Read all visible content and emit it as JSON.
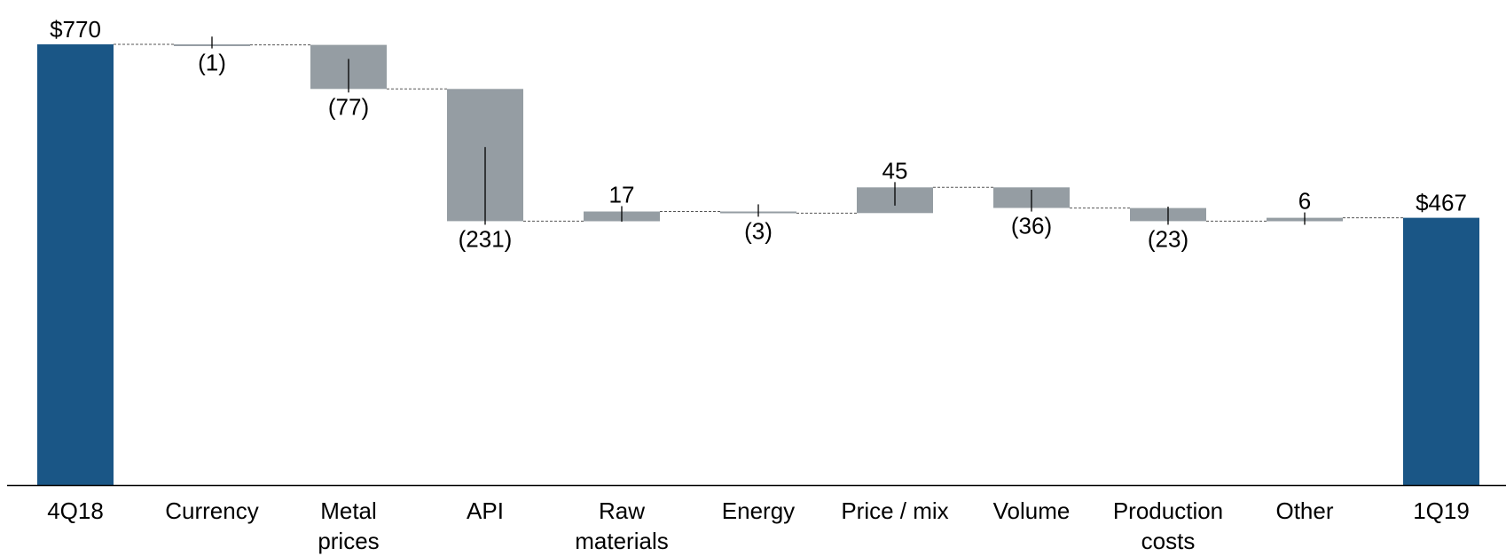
{
  "chart_data": {
    "type": "waterfall",
    "title": "",
    "xlabel": "",
    "ylabel": "",
    "ylim": [
      0,
      815
    ],
    "grid": false,
    "legend": "none",
    "colors": {
      "total": "#1a5686",
      "change": "#959da3",
      "connector": "#555555",
      "axis": "#000000"
    },
    "bars": [
      {
        "kind": "total",
        "label_lines": [
          "4Q18"
        ],
        "value": 770,
        "data_label": "$770"
      },
      {
        "kind": "change",
        "label_lines": [
          "Currency"
        ],
        "value": -1,
        "data_label": "(1)"
      },
      {
        "kind": "change",
        "label_lines": [
          "Metal",
          "prices"
        ],
        "value": -77,
        "data_label": "(77)"
      },
      {
        "kind": "change",
        "label_lines": [
          "API"
        ],
        "value": -231,
        "data_label": "(231)"
      },
      {
        "kind": "change",
        "label_lines": [
          "Raw",
          "materials"
        ],
        "value": 17,
        "data_label": "17"
      },
      {
        "kind": "change",
        "label_lines": [
          "Energy"
        ],
        "value": -3,
        "data_label": "(3)"
      },
      {
        "kind": "change",
        "label_lines": [
          "Price / mix"
        ],
        "value": 45,
        "data_label": "45"
      },
      {
        "kind": "change",
        "label_lines": [
          "Volume"
        ],
        "value": -36,
        "data_label": "(36)"
      },
      {
        "kind": "change",
        "label_lines": [
          "Production",
          "costs"
        ],
        "value": -23,
        "data_label": "(23)"
      },
      {
        "kind": "change",
        "label_lines": [
          "Other"
        ],
        "value": 6,
        "data_label": "6"
      },
      {
        "kind": "total",
        "label_lines": [
          "1Q19"
        ],
        "value": 467,
        "data_label": "$467"
      }
    ]
  }
}
